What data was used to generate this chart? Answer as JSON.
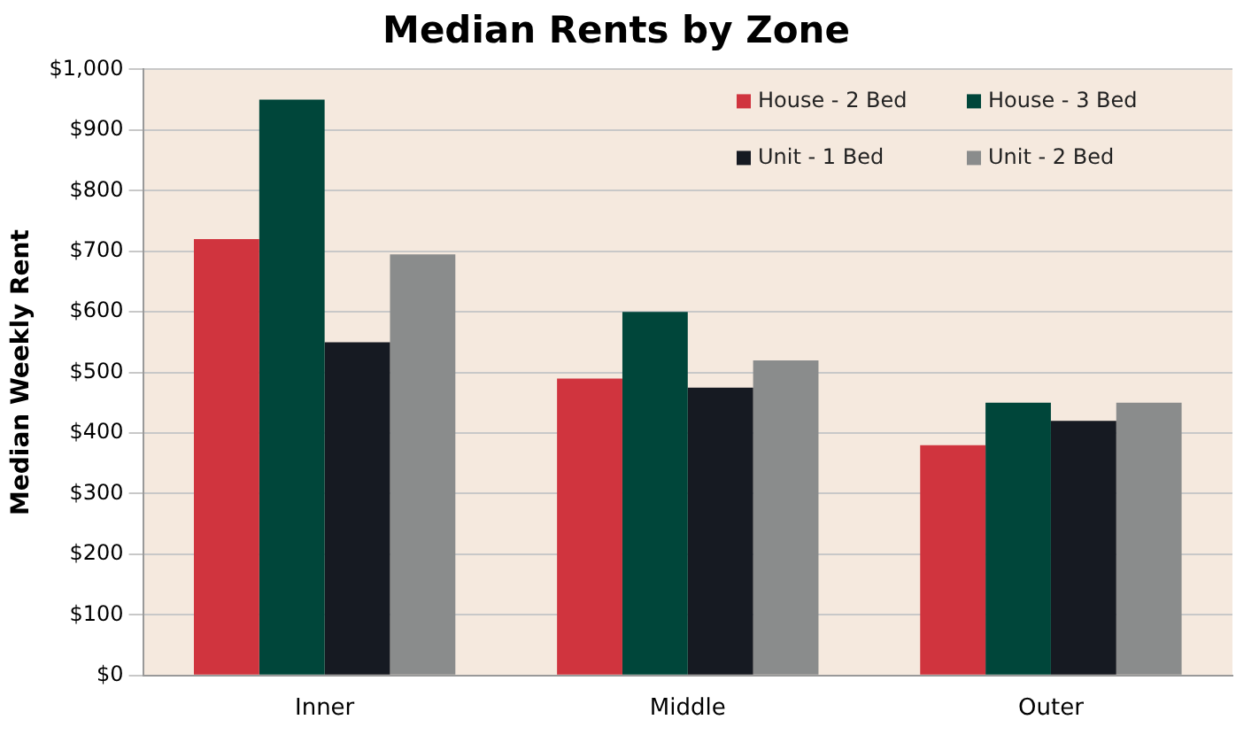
{
  "chart_data": {
    "type": "bar",
    "title": "Median Rents by Zone",
    "ylabel": "Median Weekly Rent",
    "categories": [
      "Inner",
      "Middle",
      "Outer"
    ],
    "series": [
      {
        "name": "House - 2 Bed",
        "color": "#d0343e",
        "values": [
          720,
          490,
          380
        ]
      },
      {
        "name": "House - 3 Bed",
        "color": "#00463a",
        "values": [
          950,
          600,
          450
        ]
      },
      {
        "name": "Unit - 1 Bed",
        "color": "#161a22",
        "values": [
          550,
          475,
          420
        ]
      },
      {
        "name": "Unit - 2 Bed",
        "color": "#8a8c8c",
        "values": [
          695,
          520,
          450
        ]
      }
    ],
    "ylim": [
      0,
      1000
    ],
    "yticks": [
      {
        "value": 0,
        "label": "$0"
      },
      {
        "value": 100,
        "label": "$100"
      },
      {
        "value": 200,
        "label": "$200"
      },
      {
        "value": 300,
        "label": "$300"
      },
      {
        "value": 400,
        "label": "$400"
      },
      {
        "value": 500,
        "label": "$500"
      },
      {
        "value": 600,
        "label": "$600"
      },
      {
        "value": 700,
        "label": "$700"
      },
      {
        "value": 800,
        "label": "$800"
      },
      {
        "value": 900,
        "label": "$900"
      },
      {
        "value": 1000,
        "label": "$1,000"
      }
    ],
    "grid": "y",
    "legend": "top right"
  }
}
